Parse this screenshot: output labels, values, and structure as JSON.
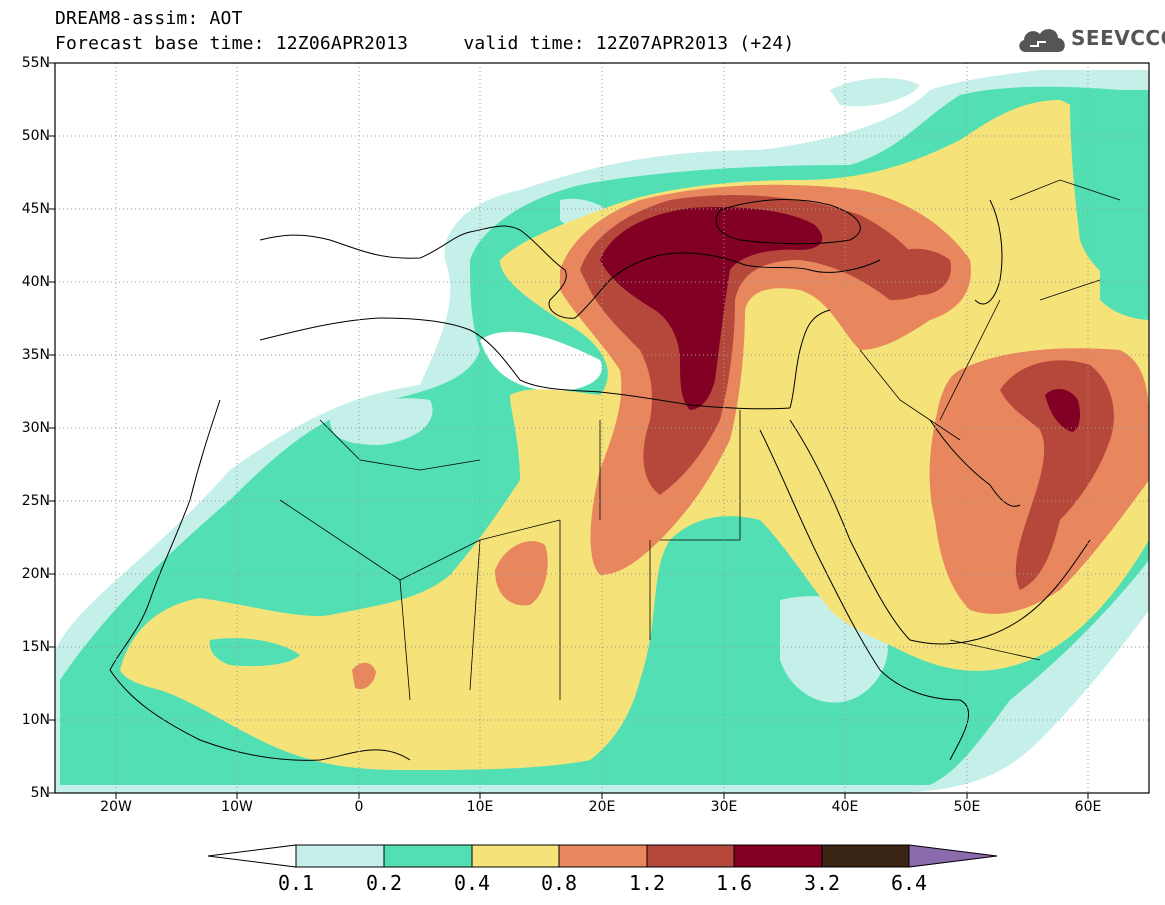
{
  "title": {
    "line1": "DREAM8-assim: AOT",
    "line2": "Forecast base time: 12Z06APR2013     valid time: 12Z07APR2013 (+24)"
  },
  "logo": {
    "text": "SEEVCCC",
    "icon": "cloud-icon"
  },
  "axes": {
    "lat_labels": [
      "55N",
      "50N",
      "45N",
      "40N",
      "35N",
      "30N",
      "25N",
      "20N",
      "15N",
      "10N",
      "5N"
    ],
    "lon_labels": [
      "20W",
      "10W",
      "0",
      "10E",
      "20E",
      "30E",
      "40E",
      "50E",
      "60E"
    ],
    "lat_range": [
      5,
      55
    ],
    "lon_range": [
      -25,
      65
    ],
    "grid": true,
    "grid_style": "dotted"
  },
  "colorbar": {
    "labels": [
      "0.1",
      "0.2",
      "0.4",
      "0.8",
      "1.2",
      "1.6",
      "3.2",
      "6.4"
    ],
    "colors": [
      "#ffffff",
      "#c5f0ea",
      "#52dfb4",
      "#f5e37a",
      "#e8875e",
      "#b5483b",
      "#820023",
      "#3a2515",
      "#8b6bab"
    ],
    "extend": "both"
  },
  "field_colors": {
    "bg": "#ffffff",
    "c1": "#c5f0ea",
    "c2": "#52dfb4",
    "c3": "#f5e37a",
    "c4": "#e8875e",
    "c5": "#b5483b",
    "c6": "#820023"
  }
}
